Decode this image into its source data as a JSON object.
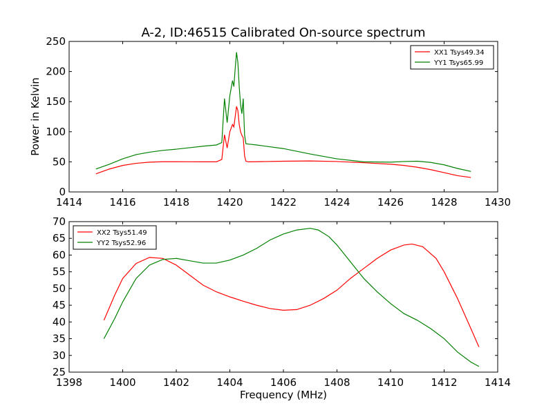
{
  "title": "A-2, ID:46515 Calibrated On-source spectrum",
  "chart_data": [
    {
      "type": "line",
      "title": "A-2, ID:46515 Calibrated On-source spectrum",
      "xlabel": "",
      "ylabel": "Power in Kelvin",
      "xlim": [
        1414,
        1430
      ],
      "ylim": [
        0,
        250
      ],
      "xticks": [
        1414,
        1416,
        1418,
        1420,
        1422,
        1424,
        1426,
        1428,
        1430
      ],
      "yticks": [
        0,
        50,
        100,
        150,
        200,
        250
      ],
      "grid": false,
      "legend_position": "top-right",
      "series": [
        {
          "name": "XX1 Tsys49.34",
          "color": "#ff0000",
          "x": [
            1415.0,
            1415.5,
            1416.0,
            1416.5,
            1417.0,
            1417.5,
            1418.0,
            1418.5,
            1419.0,
            1419.5,
            1419.7,
            1419.8,
            1419.9,
            1420.0,
            1420.1,
            1420.15,
            1420.2,
            1420.25,
            1420.3,
            1420.35,
            1420.4,
            1420.45,
            1420.5,
            1420.55,
            1420.6,
            1420.7,
            1421.0,
            1422.0,
            1423.0,
            1424.0,
            1425.0,
            1426.0,
            1426.5,
            1427.0,
            1427.5,
            1428.0,
            1428.5,
            1429.0
          ],
          "y": [
            30,
            38,
            44,
            47.5,
            49.5,
            50.2,
            50.2,
            50.1,
            50.0,
            50.0,
            54,
            95,
            73,
            100,
            112,
            108,
            125,
            142,
            135,
            112,
            100,
            94,
            90,
            60,
            51,
            50,
            50.2,
            51.0,
            51.5,
            50.5,
            48.5,
            46.0,
            44.0,
            41.0,
            37.0,
            32.0,
            27.0,
            24.0
          ]
        },
        {
          "name": "YY1 Tsys65.99",
          "color": "#008000",
          "x": [
            1415.0,
            1415.5,
            1416.0,
            1416.5,
            1417.0,
            1417.5,
            1418.0,
            1418.5,
            1419.0,
            1419.5,
            1419.7,
            1419.8,
            1419.9,
            1420.0,
            1420.1,
            1420.15,
            1420.2,
            1420.25,
            1420.3,
            1420.35,
            1420.4,
            1420.45,
            1420.5,
            1420.55,
            1420.6,
            1420.7,
            1421.0,
            1422.0,
            1423.0,
            1424.0,
            1425.0,
            1426.0,
            1426.5,
            1427.0,
            1427.5,
            1428.0,
            1428.5,
            1429.0
          ],
          "y": [
            38,
            46,
            55,
            62,
            66,
            69,
            71,
            73.5,
            76,
            78,
            82,
            155,
            115,
            160,
            185,
            175,
            205,
            232,
            215,
            175,
            145,
            130,
            155,
            95,
            80,
            79.5,
            78,
            72,
            63,
            55,
            50,
            49.5,
            50.5,
            51,
            49,
            45,
            39,
            34
          ]
        }
      ]
    },
    {
      "type": "line",
      "title": "",
      "xlabel": "Frequency (MHz)",
      "ylabel": "",
      "xlim": [
        1398,
        1414
      ],
      "ylim": [
        25,
        70
      ],
      "xticks": [
        1398,
        1400,
        1402,
        1404,
        1406,
        1408,
        1410,
        1412,
        1414
      ],
      "yticks": [
        25,
        30,
        35,
        40,
        45,
        50,
        55,
        60,
        65,
        70
      ],
      "grid": false,
      "legend_position": "top-left",
      "series": [
        {
          "name": "XX2 Tsys51.49",
          "color": "#ff0000",
          "x": [
            1399.3,
            1399.7,
            1400.0,
            1400.5,
            1401.0,
            1401.5,
            1402.0,
            1402.5,
            1403.0,
            1403.5,
            1404.0,
            1404.5,
            1405.0,
            1405.5,
            1406.0,
            1406.5,
            1407.0,
            1407.5,
            1408.0,
            1408.5,
            1409.0,
            1409.5,
            1410.0,
            1410.5,
            1410.8,
            1411.2,
            1411.7,
            1412.0,
            1412.5,
            1413.0,
            1413.3
          ],
          "y": [
            40.5,
            48,
            53,
            57.5,
            59.3,
            59.0,
            57.0,
            54.0,
            51.0,
            49.0,
            47.5,
            46.2,
            45.0,
            44.0,
            43.5,
            43.7,
            45.0,
            47.0,
            49.5,
            53.0,
            56.0,
            59.0,
            61.5,
            63.0,
            63.3,
            62.5,
            59.0,
            55.0,
            47.0,
            38.0,
            32.5
          ]
        },
        {
          "name": "YY2 Tsys52.96",
          "color": "#008000",
          "x": [
            1399.3,
            1399.7,
            1400.0,
            1400.5,
            1401.0,
            1401.5,
            1402.0,
            1402.5,
            1403.0,
            1403.5,
            1404.0,
            1404.5,
            1405.0,
            1405.5,
            1406.0,
            1406.5,
            1407.0,
            1407.3,
            1407.7,
            1408.0,
            1408.5,
            1409.0,
            1409.5,
            1410.0,
            1410.5,
            1411.0,
            1411.5,
            1412.0,
            1412.5,
            1413.0,
            1413.3
          ],
          "y": [
            35,
            41,
            46,
            53,
            57,
            58.7,
            59,
            58.3,
            57.6,
            57.6,
            58.5,
            60.0,
            62.0,
            64.5,
            66.3,
            67.5,
            68.0,
            67.5,
            65.5,
            63.0,
            58.0,
            53.0,
            49.0,
            45.5,
            42.5,
            40.5,
            38.0,
            35.0,
            31.0,
            28.0,
            26.7
          ]
        }
      ]
    }
  ]
}
